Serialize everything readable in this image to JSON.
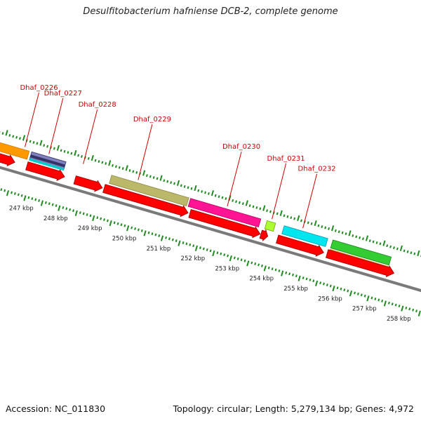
{
  "title": "Desulfitobacterium hafniense DCB-2, complete genome",
  "footer": {
    "accession": "Accession: NC_011830",
    "summary": "Topology: circular; Length: 5,279,134 bp; Genes: 4,972"
  },
  "colors": {
    "label": "#cc0000",
    "leader": "#cc0000",
    "backbone": "#7a7a7a",
    "tick": "#1f8a1f",
    "cds": "#ff0000"
  },
  "gene_labels": [
    {
      "name": "Dhaf_0226",
      "pos": 0.6
    },
    {
      "name": "Dhaf_0227",
      "pos": 1.3
    },
    {
      "name": "Dhaf_0228",
      "pos": 2.3
    },
    {
      "name": "Dhaf_0229",
      "pos": 3.9
    },
    {
      "name": "Dhaf_0230",
      "pos": 6.5
    },
    {
      "name": "Dhaf_0231",
      "pos": 7.8
    },
    {
      "name": "Dhaf_0232",
      "pos": 8.7
    }
  ],
  "kbp_labels": [
    {
      "text": "247 kbp",
      "pos": 1
    },
    {
      "text": "248 kbp",
      "pos": 2
    },
    {
      "text": "249 kbp",
      "pos": 3
    },
    {
      "text": "250 kbp",
      "pos": 4
    },
    {
      "text": "251 kbp",
      "pos": 5
    },
    {
      "text": "252 kbp",
      "pos": 6
    },
    {
      "text": "253 kbp",
      "pos": 7
    },
    {
      "text": "254 kbp",
      "pos": 8
    },
    {
      "text": "255 kbp",
      "pos": 9
    },
    {
      "text": "256 kbp",
      "pos": 10
    },
    {
      "text": "257 kbp",
      "pos": 11
    },
    {
      "text": "258 kbp",
      "pos": 12
    }
  ],
  "feature_bars": [
    {
      "name": "dhaf-0226-bar",
      "start": -0.2,
      "end": 0.75,
      "color": "#ff9900",
      "edge": "#cc7700"
    },
    {
      "name": "dhaf-0227-bar",
      "start": 0.82,
      "end": 1.82,
      "color": "#8080c0",
      "edge": "#333366"
    },
    {
      "name": "dhaf-0229-bar",
      "start": 3.15,
      "end": 5.4,
      "color": "#bcb86a",
      "edge": "#8c8840"
    },
    {
      "name": "dhaf-0230-bar",
      "start": 5.45,
      "end": 7.5,
      "color": "#ff1493",
      "edge": "#b8005e"
    },
    {
      "name": "dhaf-0231-bar",
      "start": 7.68,
      "end": 7.93,
      "color": "#adff2f",
      "edge": "#66aa00"
    },
    {
      "name": "dhaf-0232-bar",
      "start": 8.18,
      "end": 9.45,
      "color": "#00e5ee",
      "edge": "#0099aa"
    },
    {
      "name": "green-bar",
      "start": 9.6,
      "end": 11.3,
      "color": "#33cc33",
      "edge": "#1a801a"
    }
  ],
  "cds_arrows": [
    {
      "start": -0.3,
      "end": 0.45
    },
    {
      "start": 0.8,
      "end": 1.9
    },
    {
      "start": 2.2,
      "end": 3.0
    },
    {
      "start": 3.05,
      "end": 5.5
    },
    {
      "start": 5.55,
      "end": 7.6
    },
    {
      "start": 7.62,
      "end": 7.82
    },
    {
      "start": 8.1,
      "end": 9.45
    },
    {
      "start": 9.55,
      "end": 11.5
    }
  ]
}
